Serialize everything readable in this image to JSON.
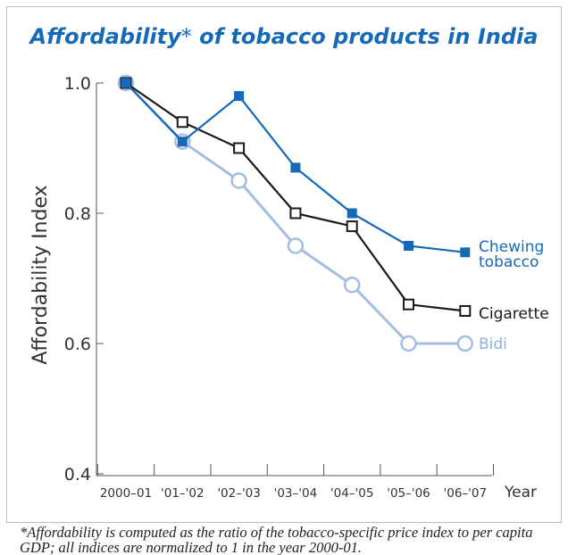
{
  "title_main": "Affordability",
  "title_asterisk": "*",
  "title_rest": " of tobacco products in India",
  "footnote": "*Affordability is computed as the ratio of the tobacco-specific price index to per capita GDP; all indices are normalized to 1 in the year 2000-01.",
  "chart_data": {
    "type": "line",
    "title": "Affordability* of tobacco products in India",
    "xlabel": "Year",
    "ylabel": "Affordability Index",
    "categories": [
      "2000–01",
      "'01–'02",
      "'02–'03",
      "'03–'04",
      "'04–'05",
      "'05–'06",
      "'06–'07"
    ],
    "ylim": [
      0.4,
      1.0
    ],
    "yticks": [
      "0.4",
      "0.6",
      "0.8",
      "1.0"
    ],
    "grid": false,
    "legend": "inline labels at right end of each line",
    "series": [
      {
        "name": "Chewing tobacco",
        "label_lines": [
          "Chewing",
          "tobacco"
        ],
        "color": "#1569b7",
        "marker": "filled-square",
        "values": [
          1.0,
          0.91,
          0.98,
          0.87,
          0.8,
          0.75,
          0.74
        ]
      },
      {
        "name": "Cigarette",
        "label_lines": [
          "Cigarette"
        ],
        "color": "#1a1a1a",
        "marker": "open-square",
        "values": [
          1.0,
          0.94,
          0.9,
          0.8,
          0.78,
          0.66,
          0.65
        ]
      },
      {
        "name": "Bidi",
        "label_lines": [
          "Bidi"
        ],
        "color": "#a4bde3",
        "marker": "open-circle",
        "values": [
          1.0,
          0.91,
          0.85,
          0.75,
          0.69,
          0.6,
          0.6
        ]
      }
    ]
  }
}
